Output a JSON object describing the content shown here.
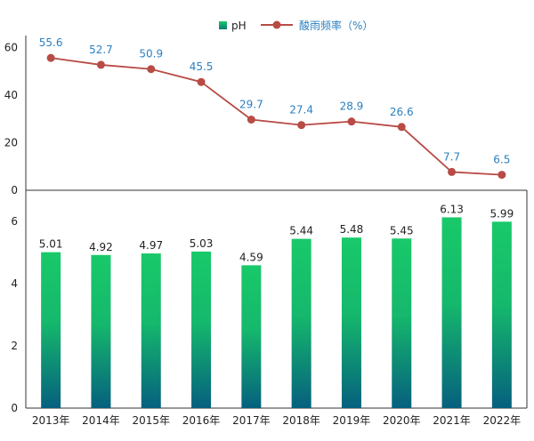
{
  "legend": {
    "ph_label": "pH",
    "acid_label": "酸雨频率（%）"
  },
  "colors": {
    "bar_top": "#19c96a",
    "bar_bottom": "#06607e",
    "legend_ph_top": "#19c96a",
    "legend_ph_bottom": "#0a7a70",
    "line": "#b84b45",
    "line_label": "#2a7fc0",
    "axis": "#333333"
  },
  "chart_data": [
    {
      "type": "line",
      "name": "acid-rain-frequency",
      "series": [
        {
          "name": "酸雨频率（%）",
          "values": [
            55.6,
            52.7,
            50.9,
            45.5,
            29.7,
            27.4,
            28.9,
            26.6,
            7.7,
            6.5
          ]
        }
      ],
      "categories": [
        "2013年",
        "2014年",
        "2015年",
        "2016年",
        "2017年",
        "2018年",
        "2019年",
        "2020年",
        "2021年",
        "2022年"
      ],
      "value_labels": [
        "55.6",
        "52.7",
        "50.9",
        "45.5",
        "29.7",
        "27.4",
        "28.9",
        "26.6",
        "7.7",
        "6.5"
      ],
      "ylim": [
        0,
        65
      ],
      "yticks": [
        0,
        20,
        40,
        60
      ],
      "ytick_labels": [
        "0",
        "20",
        "40",
        "60"
      ],
      "grid": false
    },
    {
      "type": "bar",
      "name": "ph",
      "series": [
        {
          "name": "pH",
          "values": [
            5.01,
            4.92,
            4.97,
            5.03,
            4.59,
            5.44,
            5.48,
            5.45,
            6.13,
            5.99
          ]
        }
      ],
      "categories": [
        "2013年",
        "2014年",
        "2015年",
        "2016年",
        "2017年",
        "2018年",
        "2019年",
        "2020年",
        "2021年",
        "2022年"
      ],
      "value_labels": [
        "5.01",
        "4.92",
        "4.97",
        "5.03",
        "4.59",
        "5.44",
        "5.48",
        "5.45",
        "6.13",
        "5.99"
      ],
      "ylim": [
        0,
        7
      ],
      "yticks": [
        0,
        2,
        4,
        6
      ],
      "ytick_labels": [
        "0",
        "2",
        "4",
        "6"
      ],
      "grid": false
    }
  ]
}
